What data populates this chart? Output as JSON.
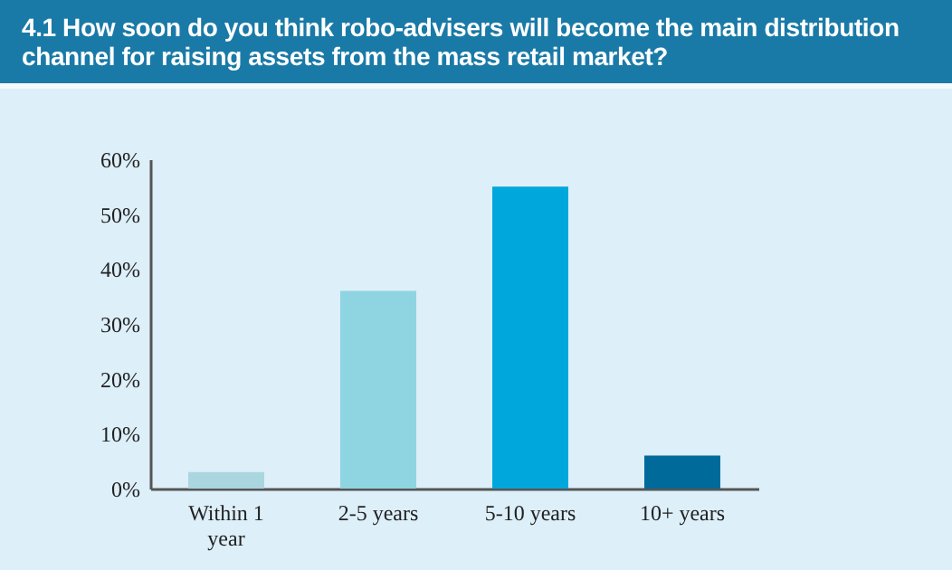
{
  "chart_data": {
    "type": "bar",
    "title": "4.1 How soon do you think robo-advisers will become the main distribution channel for raising assets from the mass retail market?",
    "categories": [
      "Within 1 year",
      "2-5 years",
      "5-10 years",
      "10+ years"
    ],
    "values": [
      3,
      36,
      55,
      6
    ],
    "colors": [
      "#a9d6df",
      "#8fd4e1",
      "#00a7dc",
      "#006b9a"
    ],
    "ylim": [
      0,
      60
    ],
    "yticks": [
      {
        "value": 0,
        "label": "0%"
      },
      {
        "value": 10,
        "label": "10%"
      },
      {
        "value": 20,
        "label": "20%"
      },
      {
        "value": 30,
        "label": "30%"
      },
      {
        "value": 40,
        "label": "40%"
      },
      {
        "value": 50,
        "label": "50%"
      },
      {
        "value": 60,
        "label": "60%"
      }
    ],
    "grid": false,
    "legend": false
  }
}
